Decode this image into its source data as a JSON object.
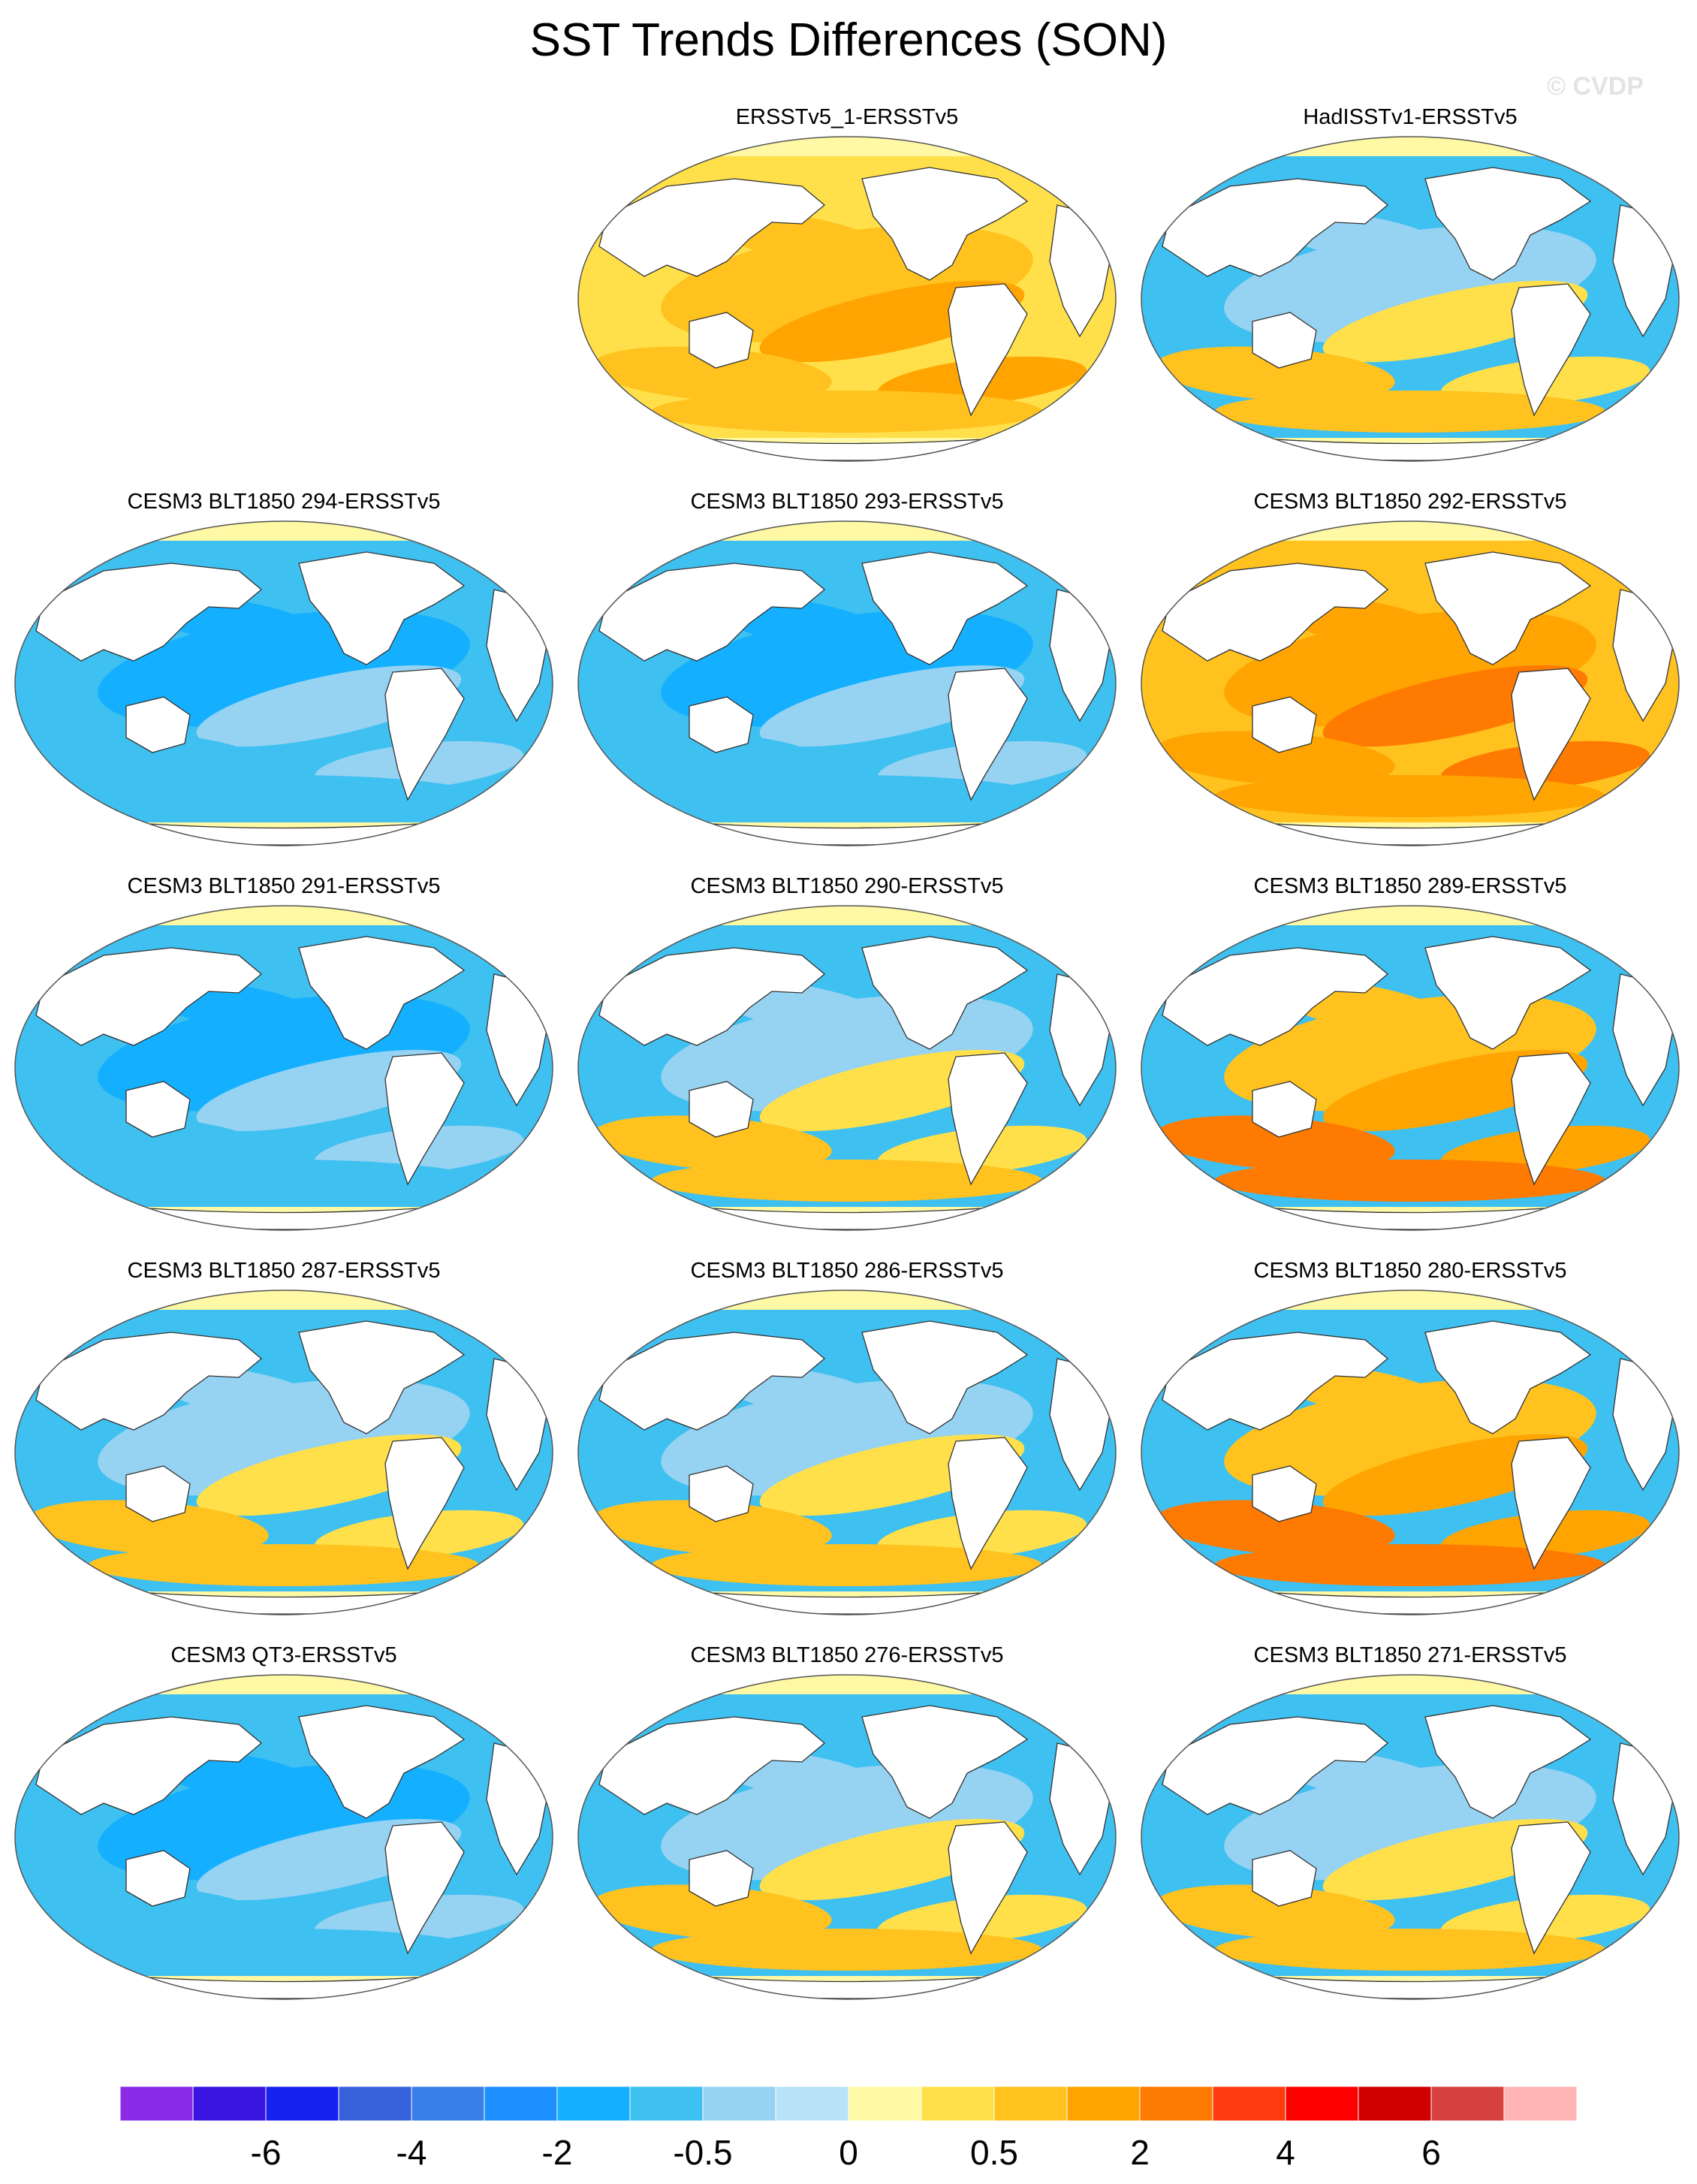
{
  "title": "SST Trends Differences (SON)",
  "watermark": "© CVDP",
  "panels": [
    {
      "title": "ERSSTv5_1-ERSSTv5",
      "regime": "warm"
    },
    {
      "title": "HadISSTv1-ERSSTv5",
      "regime": "mixed"
    },
    {
      "title": "CESM3 BLT1850 294-ERSSTv5",
      "regime": "cool"
    },
    {
      "title": "CESM3 BLT1850 293-ERSSTv5",
      "regime": "cool"
    },
    {
      "title": "CESM3 BLT1850 292-ERSSTv5",
      "regime": "warm-strong"
    },
    {
      "title": "CESM3 BLT1850 291-ERSSTv5",
      "regime": "cool"
    },
    {
      "title": "CESM3 BLT1850 290-ERSSTv5",
      "regime": "mixed"
    },
    {
      "title": "CESM3 BLT1850 289-ERSSTv5",
      "regime": "warm-tropical"
    },
    {
      "title": "CESM3 BLT1850 287-ERSSTv5",
      "regime": "mixed"
    },
    {
      "title": "CESM3 BLT1850 286-ERSSTv5",
      "regime": "mixed"
    },
    {
      "title": "CESM3 BLT1850 280-ERSSTv5",
      "regime": "warm-tropical"
    },
    {
      "title": "CESM3 QT3-ERSSTv5",
      "regime": "cool"
    },
    {
      "title": "CESM3 BLT1850 276-ERSSTv5",
      "regime": "mixed"
    },
    {
      "title": "CESM3 BLT1850 271-ERSSTv5",
      "regime": "mixed"
    }
  ],
  "colorbar": {
    "colors": [
      "#8a2be8",
      "#3a14e0",
      "#1722f0",
      "#3760dc",
      "#3a7ee8",
      "#1e8fff",
      "#14b0ff",
      "#3ec0f0",
      "#96d2f2",
      "#b8e2f6",
      "#fff8a4",
      "#ffe04a",
      "#ffc21e",
      "#ffa400",
      "#ff7a00",
      "#ff3c10",
      "#ff0000",
      "#d00000",
      "#d84040",
      "#ffb4b4"
    ],
    "tick_labels": [
      "-6",
      "-4",
      "-2",
      "-0.5",
      "0",
      "0.5",
      "2",
      "4",
      "6"
    ]
  }
}
